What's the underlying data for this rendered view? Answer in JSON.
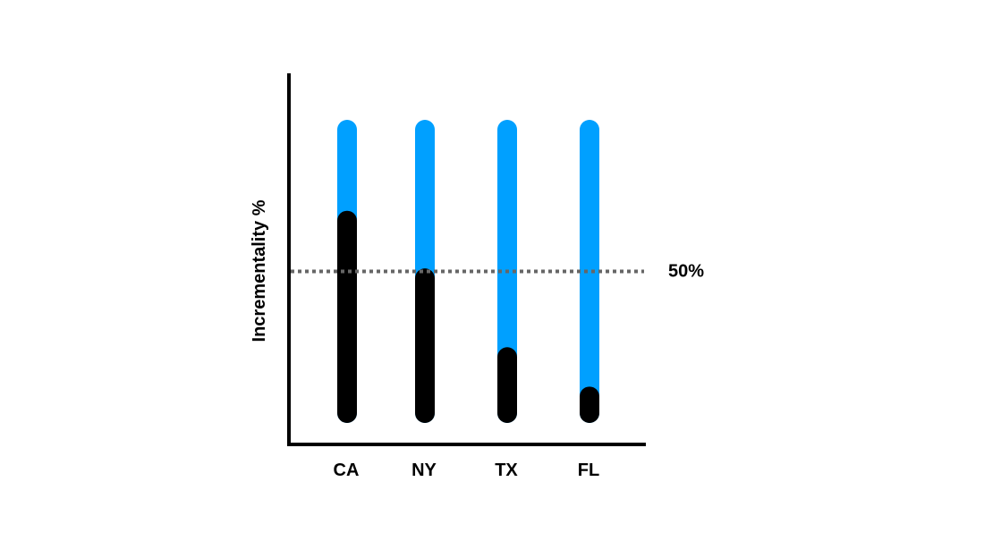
{
  "chart_data": {
    "type": "bar",
    "title": "",
    "xlabel": "",
    "ylabel": "Incrementality %",
    "categories": [
      "CA",
      "NY",
      "TX",
      "FL"
    ],
    "values": [
      70,
      51,
      25,
      12
    ],
    "ylim": [
      0,
      100
    ],
    "reference_line": {
      "value": 50,
      "label": "50%",
      "style": "dotted"
    },
    "grid": false,
    "legend": "none",
    "colors": {
      "total_track": "#00a0ff",
      "value_fill": "#000000",
      "axis": "#000000",
      "reference_line": "#666666"
    }
  }
}
